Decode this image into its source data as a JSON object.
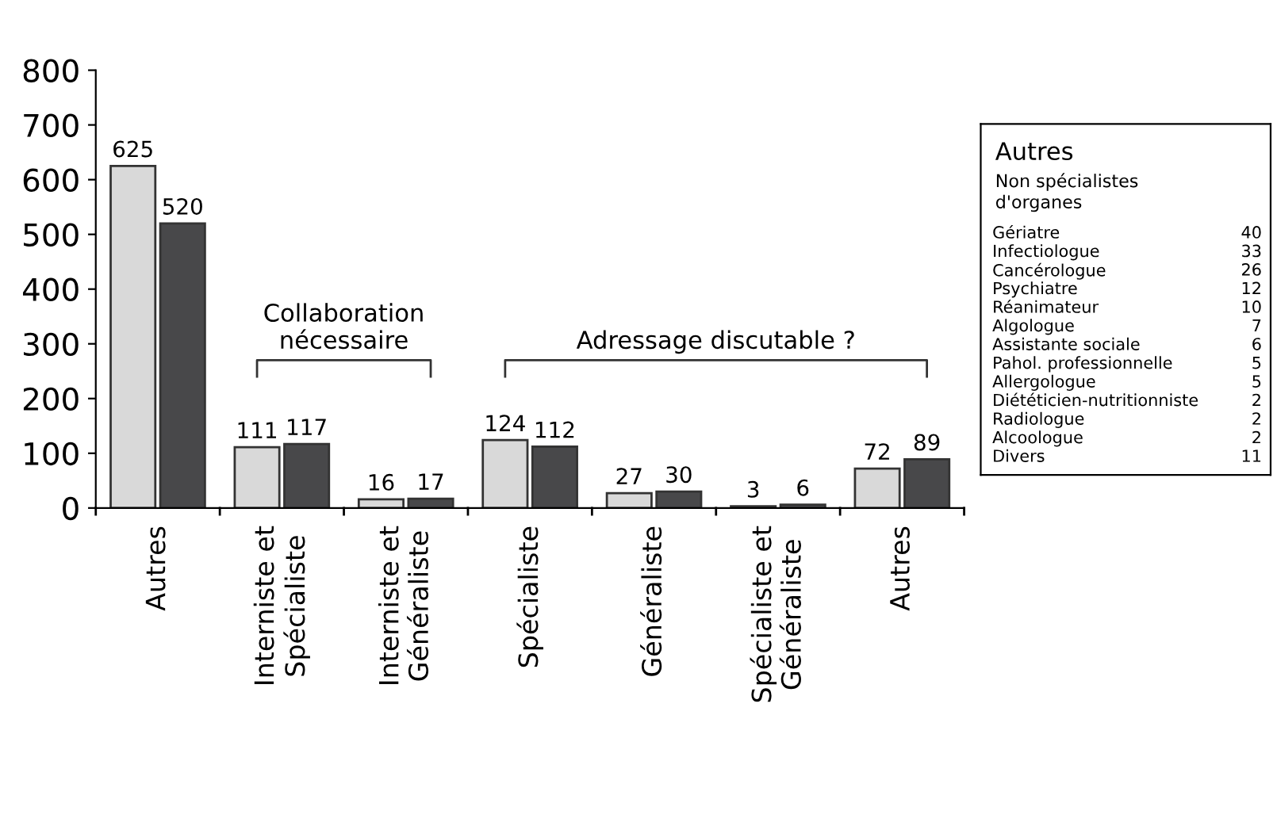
{
  "chart_data": [
    {
      "type": "bar",
      "categories": [
        "Autres",
        "Interniste et\nSpécialiste",
        "Interniste et\nGénéraliste",
        "Spécialiste",
        "Généraliste",
        "Spécialiste et\nGénéraliste",
        "Autres"
      ],
      "series": [
        {
          "color": "#d9d9d9",
          "values": [
            625,
            111,
            16,
            124,
            27,
            3,
            72
          ]
        },
        {
          "color": "#48484a",
          "values": [
            520,
            117,
            17,
            112,
            30,
            6,
            89
          ]
        }
      ],
      "ylim": [
        0,
        800
      ],
      "yticks": [
        0,
        100,
        200,
        300,
        400,
        500,
        600,
        700,
        800
      ],
      "data_labels": true,
      "grid": false,
      "annotations": [
        "Collaboration\nnécessaire",
        "Adressage discutable ?"
      ]
    },
    {
      "type": "other",
      "title": "Autres",
      "subtitle": "Non spécialistes\nd'organes",
      "categories": [
        "Gériatre",
        "Infectiologue",
        "Cancérologue",
        "Psychiatre",
        "Réanimateur",
        "Algologue",
        "Assistante sociale",
        "Pahol. professionnelle",
        "Allergologue",
        "Diététicien-nutritionniste",
        "Radiologue",
        "Alcoologue",
        "Divers"
      ],
      "values": [
        40,
        33,
        26,
        12,
        10,
        7,
        6,
        5,
        5,
        2,
        2,
        2,
        11
      ],
      "data_labels": true
    }
  ]
}
